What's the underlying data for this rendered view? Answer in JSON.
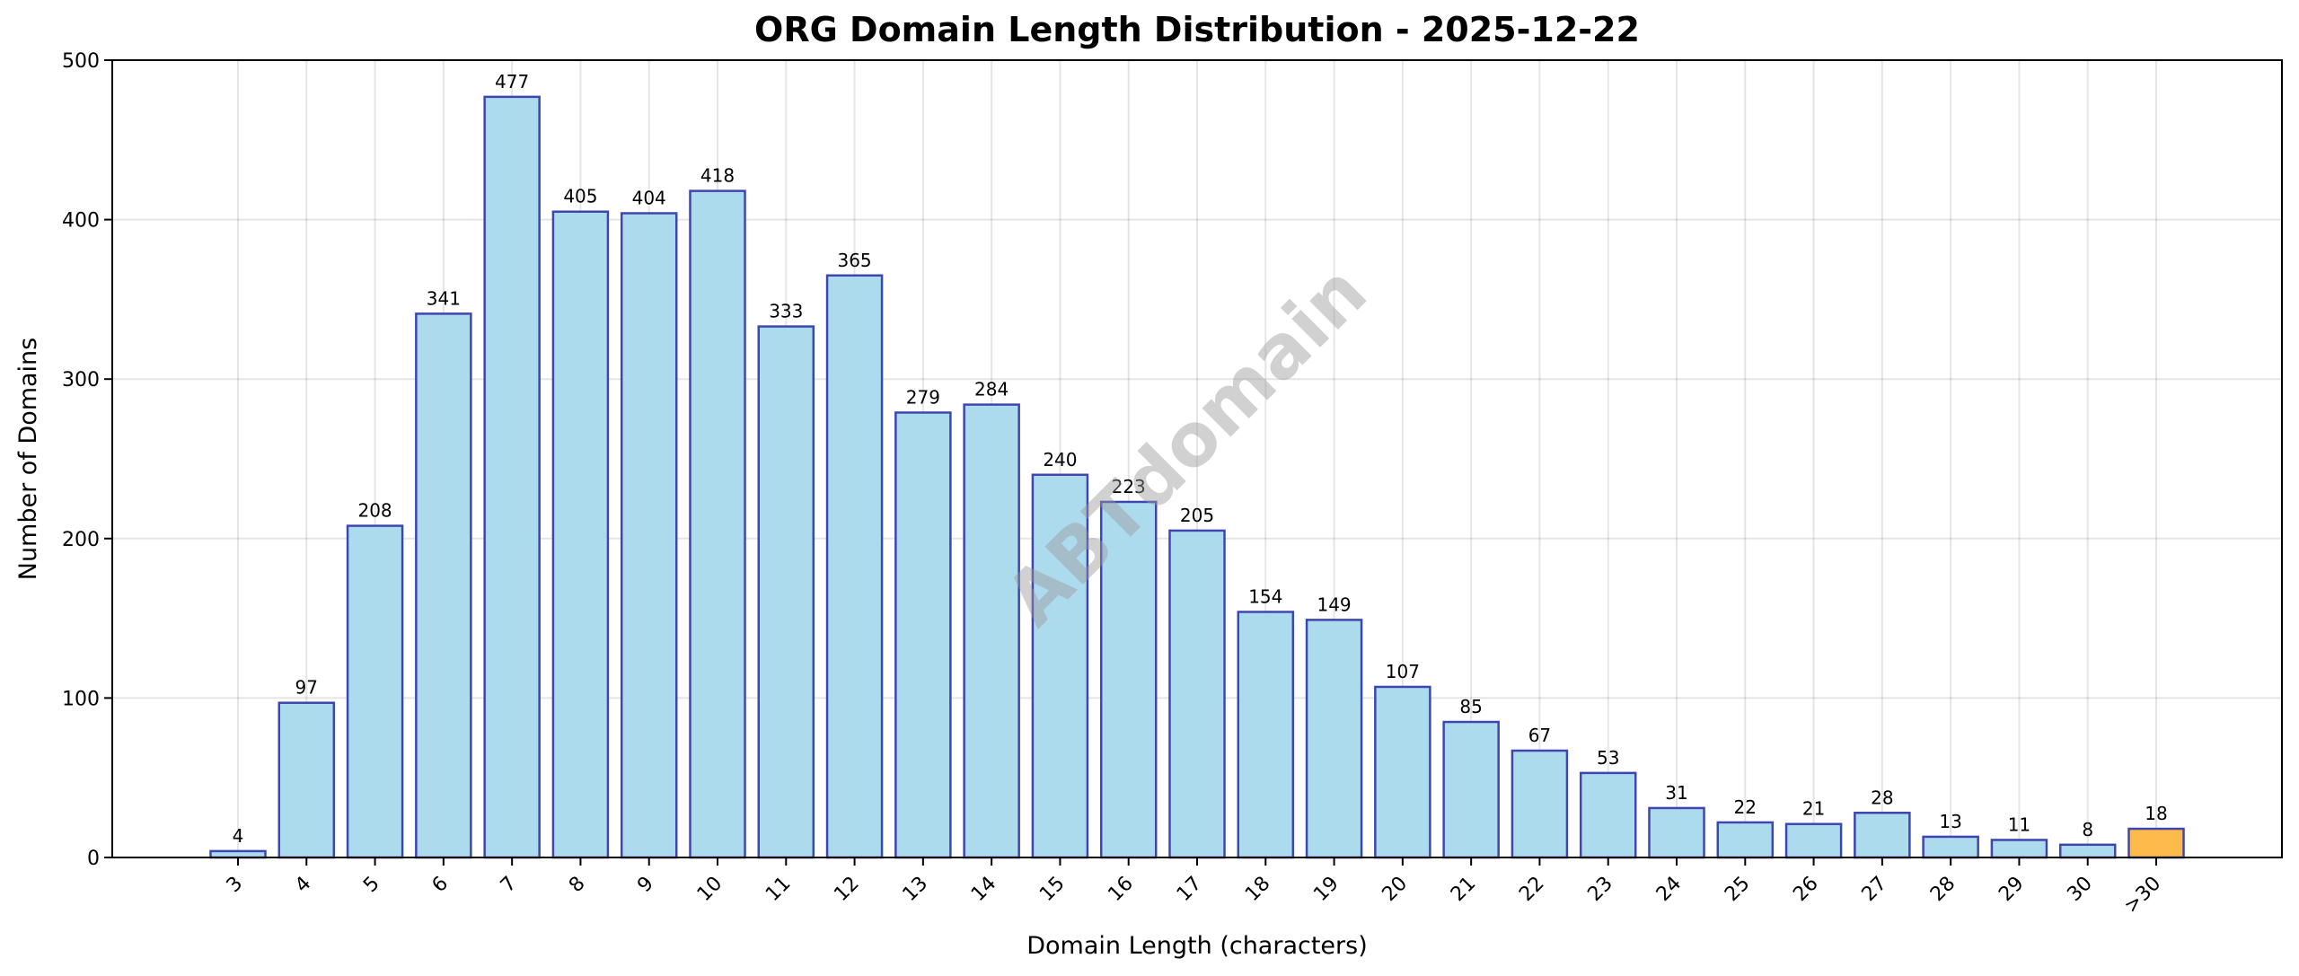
{
  "chart_data": {
    "type": "bar",
    "title": "ORG Domain Length Distribution - 2025-12-22",
    "xlabel": "Domain Length (characters)",
    "ylabel": "Number of Domains",
    "categories": [
      "3",
      "4",
      "5",
      "6",
      "7",
      "8",
      "9",
      "10",
      "11",
      "12",
      "13",
      "14",
      "15",
      "16",
      "17",
      "18",
      "19",
      "20",
      "21",
      "22",
      "23",
      "24",
      "25",
      "26",
      "27",
      "28",
      "29",
      "30",
      ">30"
    ],
    "values": [
      4,
      97,
      208,
      341,
      477,
      405,
      404,
      418,
      333,
      365,
      279,
      284,
      240,
      223,
      205,
      154,
      149,
      107,
      85,
      67,
      53,
      31,
      22,
      21,
      28,
      13,
      11,
      8,
      18
    ],
    "ylim": [
      0,
      500
    ],
    "yticks": [
      0,
      100,
      200,
      300,
      400,
      500
    ],
    "grid": true,
    "watermark": "ABTdomain",
    "colors": {
      "bar": "#ADDBEE",
      "bar_edge": "#3E46B0",
      "highlight_bar": "#FFBB4A",
      "watermark": "#9A9A9A"
    }
  }
}
